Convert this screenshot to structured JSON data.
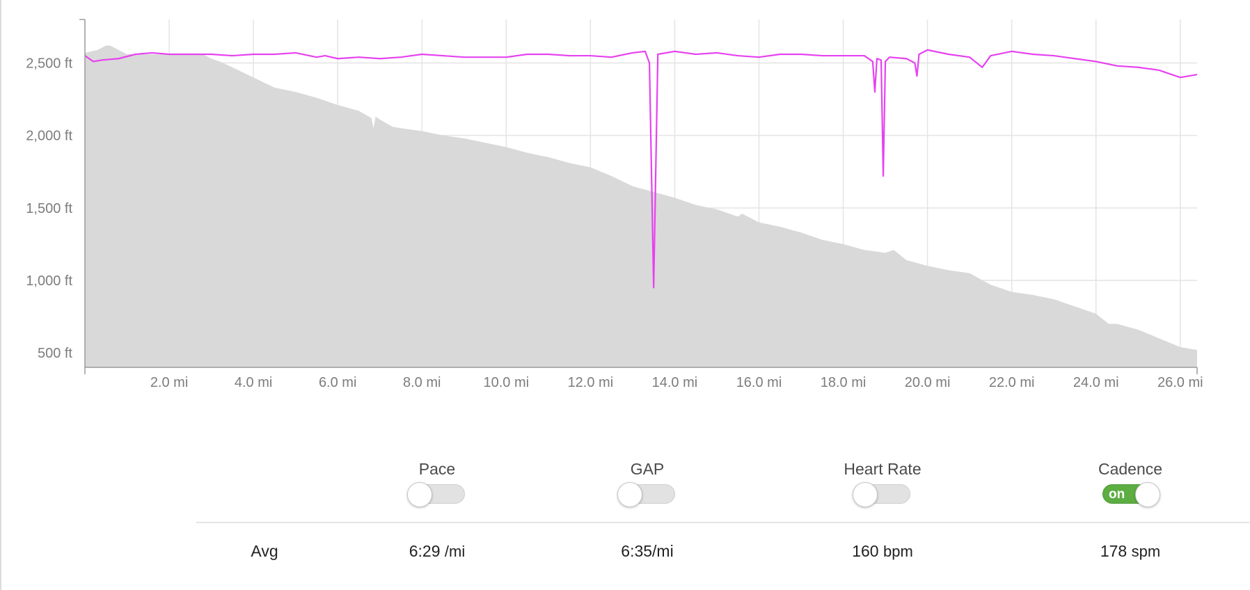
{
  "chart_data": {
    "type": "area",
    "x_unit": "mi",
    "y_unit": "ft",
    "xlim": [
      0,
      26.4
    ],
    "ylim": [
      400,
      2800
    ],
    "grid": true,
    "y_ticks": [
      {
        "value": 500,
        "label": "500 ft"
      },
      {
        "value": 1000,
        "label": "1,000 ft"
      },
      {
        "value": 1500,
        "label": "1,500 ft"
      },
      {
        "value": 2000,
        "label": "2,000 ft"
      },
      {
        "value": 2500,
        "label": "2,500 ft"
      }
    ],
    "x_ticks": [
      {
        "value": 2,
        "label": "2.0 mi"
      },
      {
        "value": 4,
        "label": "4.0 mi"
      },
      {
        "value": 6,
        "label": "6.0 mi"
      },
      {
        "value": 8,
        "label": "8.0 mi"
      },
      {
        "value": 10,
        "label": "10.0 mi"
      },
      {
        "value": 12,
        "label": "12.0 mi"
      },
      {
        "value": 14,
        "label": "14.0 mi"
      },
      {
        "value": 16,
        "label": "16.0 mi"
      },
      {
        "value": 18,
        "label": "18.0 mi"
      },
      {
        "value": 20,
        "label": "20.0 mi"
      },
      {
        "value": 22,
        "label": "22.0 mi"
      },
      {
        "value": 24,
        "label": "24.0 mi"
      },
      {
        "value": 26,
        "label": "26.0 mi"
      }
    ],
    "series": [
      {
        "kind": "area",
        "color": "#d9d9d9",
        "x": [
          0,
          0.3,
          0.5,
          0.6,
          1.0,
          2.0,
          2.8,
          3.0,
          3.2,
          3.5,
          4.0,
          4.5,
          5.0,
          5.5,
          6.0,
          6.5,
          6.8,
          6.85,
          6.9,
          7.0,
          7.3,
          7.5,
          8.0,
          8.5,
          9.0,
          9.5,
          10.0,
          10.5,
          11.0,
          11.5,
          12.0,
          12.5,
          13.0,
          13.5,
          14.0,
          14.5,
          15.0,
          15.5,
          15.6,
          16.0,
          16.5,
          17.0,
          17.5,
          18.0,
          18.5,
          19.0,
          19.2,
          19.5,
          20.0,
          20.5,
          21.0,
          21.5,
          22.0,
          22.5,
          23.0,
          23.5,
          24.0,
          24.3,
          24.5,
          25.0,
          25.5,
          26.0,
          26.4
        ],
        "y": [
          2570,
          2590,
          2620,
          2620,
          2560,
          2560,
          2560,
          2530,
          2510,
          2470,
          2400,
          2330,
          2300,
          2260,
          2210,
          2170,
          2120,
          2050,
          2130,
          2110,
          2060,
          2050,
          2030,
          2000,
          1980,
          1950,
          1920,
          1880,
          1850,
          1810,
          1780,
          1720,
          1650,
          1610,
          1570,
          1520,
          1490,
          1440,
          1460,
          1400,
          1370,
          1330,
          1280,
          1250,
          1210,
          1190,
          1210,
          1140,
          1100,
          1070,
          1050,
          970,
          920,
          900,
          870,
          820,
          770,
          700,
          700,
          660,
          600,
          540,
          520
        ]
      },
      {
        "kind": "line",
        "name": "Cadence",
        "color": "#e642f0",
        "x": [
          0,
          0.2,
          0.4,
          0.8,
          1.2,
          1.6,
          2.0,
          2.5,
          3.0,
          3.5,
          4.0,
          4.5,
          5.0,
          5.5,
          5.7,
          6.0,
          6.5,
          7.0,
          7.5,
          8.0,
          8.5,
          9.0,
          9.5,
          10.0,
          10.5,
          11.0,
          11.5,
          12.0,
          12.5,
          13.0,
          13.3,
          13.4,
          13.5,
          13.6,
          14.0,
          14.5,
          15.0,
          15.5,
          16.0,
          16.5,
          17.0,
          17.5,
          18.0,
          18.5,
          18.7,
          18.75,
          18.8,
          18.9,
          18.95,
          19.0,
          19.1,
          19.5,
          19.7,
          19.75,
          19.8,
          20.0,
          20.5,
          21.0,
          21.3,
          21.5,
          22.0,
          22.5,
          23.0,
          23.5,
          24.0,
          24.5,
          25.0,
          25.5,
          25.8,
          26.0,
          26.4
        ],
        "y": [
          2550,
          2510,
          2520,
          2530,
          2560,
          2570,
          2560,
          2560,
          2560,
          2550,
          2560,
          2560,
          2570,
          2540,
          2550,
          2530,
          2540,
          2530,
          2540,
          2560,
          2550,
          2540,
          2540,
          2540,
          2560,
          2560,
          2550,
          2550,
          2540,
          2570,
          2580,
          2500,
          950,
          2560,
          2580,
          2560,
          2570,
          2550,
          2540,
          2560,
          2560,
          2550,
          2550,
          2550,
          2510,
          2300,
          2530,
          2520,
          1720,
          2510,
          2540,
          2530,
          2500,
          2410,
          2560,
          2590,
          2560,
          2540,
          2470,
          2550,
          2580,
          2560,
          2550,
          2530,
          2510,
          2480,
          2470,
          2450,
          2420,
          2400,
          2420
        ]
      }
    ]
  },
  "toggles": [
    {
      "label": "Pace",
      "on": false
    },
    {
      "label": "GAP",
      "on": false
    },
    {
      "label": "Heart Rate",
      "on": false
    },
    {
      "label": "Cadence",
      "on": true,
      "on_text": "on"
    }
  ],
  "stats": {
    "row_label": "Avg",
    "pace": {
      "value": "6:29",
      "unit": "/mi"
    },
    "gap": {
      "value": "6:35/mi"
    },
    "heart_rate": {
      "value": "160",
      "unit": "bpm"
    },
    "cadence": {
      "value": "178",
      "unit": "spm"
    }
  }
}
